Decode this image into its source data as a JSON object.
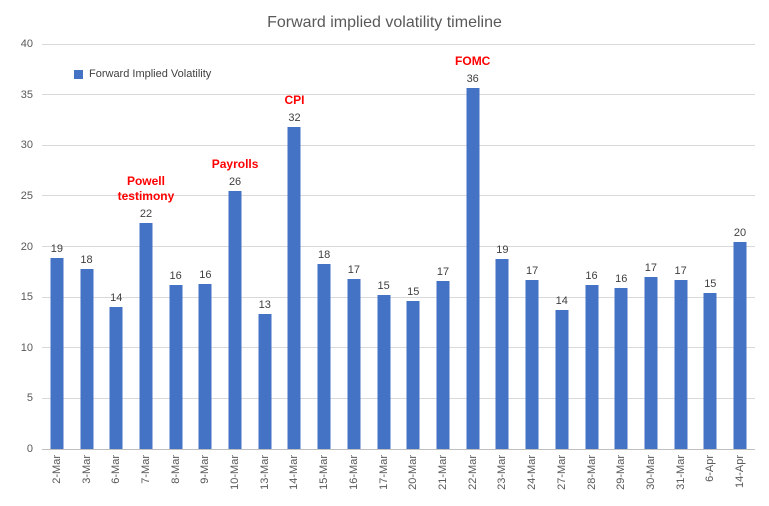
{
  "chart_data": {
    "type": "bar",
    "title": "Forward implied volatility timeline",
    "legend": {
      "label": "Forward Implied Volatility",
      "position": "top-left-inside"
    },
    "categories": [
      "2-Mar",
      "3-Mar",
      "6-Mar",
      "7-Mar",
      "8-Mar",
      "9-Mar",
      "10-Mar",
      "13-Mar",
      "14-Mar",
      "15-Mar",
      "16-Mar",
      "17-Mar",
      "20-Mar",
      "21-Mar",
      "22-Mar",
      "23-Mar",
      "24-Mar",
      "27-Mar",
      "28-Mar",
      "29-Mar",
      "30-Mar",
      "31-Mar",
      "6-Apr",
      "14-Apr"
    ],
    "values": [
      19,
      18,
      14,
      22,
      16,
      16,
      26,
      13,
      32,
      18,
      17,
      15,
      15,
      17,
      36,
      19,
      17,
      14,
      16,
      16,
      17,
      17,
      15,
      20
    ],
    "bar_heights_precise": [
      18.9,
      17.8,
      14.0,
      22.3,
      16.2,
      16.3,
      25.5,
      13.3,
      31.8,
      18.3,
      16.8,
      15.2,
      14.6,
      16.6,
      35.7,
      18.8,
      16.7,
      13.7,
      16.2,
      15.9,
      17.0,
      16.7,
      15.4,
      20.4
    ],
    "data_labels": true,
    "xlabel": "",
    "ylabel": "",
    "ylim": [
      0,
      40
    ],
    "ytick_interval": 5,
    "yticks": [
      0,
      5,
      10,
      15,
      20,
      25,
      30,
      35,
      40
    ],
    "grid": "horizontal",
    "annotations": [
      {
        "category": "7-Mar",
        "lines": [
          "Powell",
          "testimony"
        ]
      },
      {
        "category": "10-Mar",
        "lines": [
          "Payrolls"
        ]
      },
      {
        "category": "14-Mar",
        "lines": [
          "CPI"
        ]
      },
      {
        "category": "22-Mar",
        "lines": [
          "FOMC"
        ]
      }
    ],
    "colors": {
      "bar": "#4472c4",
      "annotation": "#ff0000",
      "title": "#595959",
      "axis_text": "#595959",
      "data_label": "#404040",
      "gridline": "#d9d9d9",
      "axis_line": "#bfbfbf",
      "background": "#ffffff"
    }
  }
}
